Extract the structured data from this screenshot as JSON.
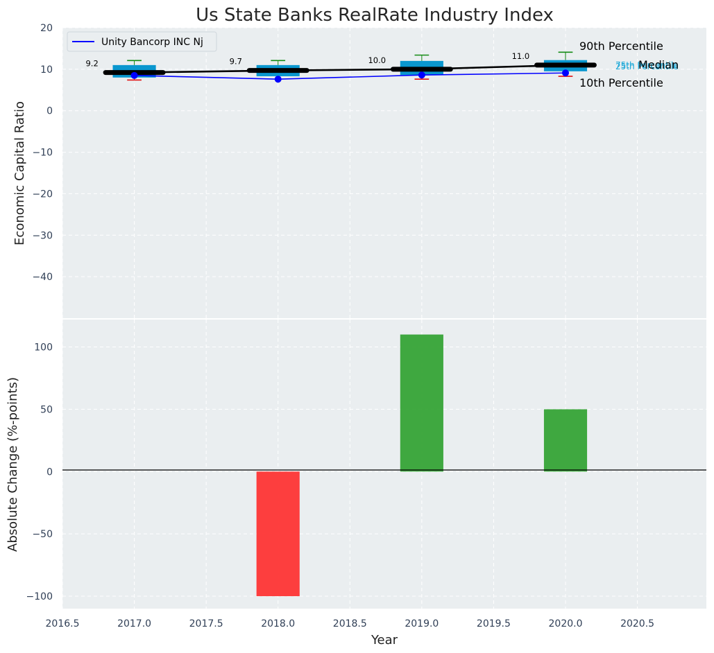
{
  "chart_data": [
    {
      "type": "box",
      "title": "Us State Banks RealRate Industry Index",
      "xlabel": "",
      "ylabel": "Economic Capital Ratio",
      "ylim": [
        -50,
        20
      ],
      "yticks": [
        20,
        10,
        0,
        -10,
        -20,
        -30,
        -40
      ],
      "xlim": [
        2016.5,
        2020.98
      ],
      "grid": true,
      "legend": {
        "position": "top-left",
        "entries": [
          "Unity Bancorp INC Nj"
        ]
      },
      "years": [
        2017,
        2018,
        2019,
        2020
      ],
      "boxes": [
        {
          "year": 2017,
          "p10": 7.4,
          "p25": 8.0,
          "median": 9.2,
          "p75": 11.0,
          "p90": 12.1
        },
        {
          "year": 2018,
          "p10": 8.6,
          "p25": 8.3,
          "median": 9.7,
          "p75": 11.0,
          "p90": 12.1
        },
        {
          "year": 2019,
          "p10": 7.6,
          "p25": 8.6,
          "median": 10.0,
          "p75": 12.0,
          "p90": 13.4
        },
        {
          "year": 2020,
          "p10": 8.3,
          "p25": 9.5,
          "median": 11.0,
          "p75": 12.2,
          "p90": 14.1
        }
      ],
      "median_labels": [
        "9.2",
        "9.7",
        "10.0",
        "11.0"
      ],
      "series": [
        {
          "name": "Unity Bancorp INC Nj",
          "color": "#0000ff",
          "values": [
            8.5,
            7.6,
            8.6,
            9.1
          ]
        }
      ],
      "percentile_labels": {
        "p90": "90th Percentile",
        "median": "Median",
        "p10": "10th Percentile",
        "p75": "75th Percentile",
        "p25": "25th Percentile"
      }
    },
    {
      "type": "bar",
      "xlabel": "Year",
      "ylabel": "Absolute Change (%-points)",
      "ylim": [
        -110,
        122
      ],
      "yticks": [
        100,
        50,
        0,
        -50,
        -100
      ],
      "xticks": [
        "2016.5",
        "2017.0",
        "2017.5",
        "2018.0",
        "2018.5",
        "2019.0",
        "2019.5",
        "2020.0",
        "2020.5"
      ],
      "xtick_values": [
        2016.5,
        2017.0,
        2017.5,
        2018.0,
        2018.5,
        2019.0,
        2019.5,
        2020.0,
        2020.5
      ],
      "categories": [
        2018,
        2019,
        2020
      ],
      "values": [
        -100,
        110,
        50
      ],
      "colors": {
        "positive": "#2ca02c",
        "negative": "#ff2a2a"
      }
    }
  ],
  "colors": {
    "plot_bg": "#eaeef0",
    "box": "#0a97cf",
    "p90_whisker": "#138a13",
    "p10_whisker": "#e01010",
    "median_line": "#000000",
    "series": "#0000ff",
    "grid": "#ffffff"
  }
}
